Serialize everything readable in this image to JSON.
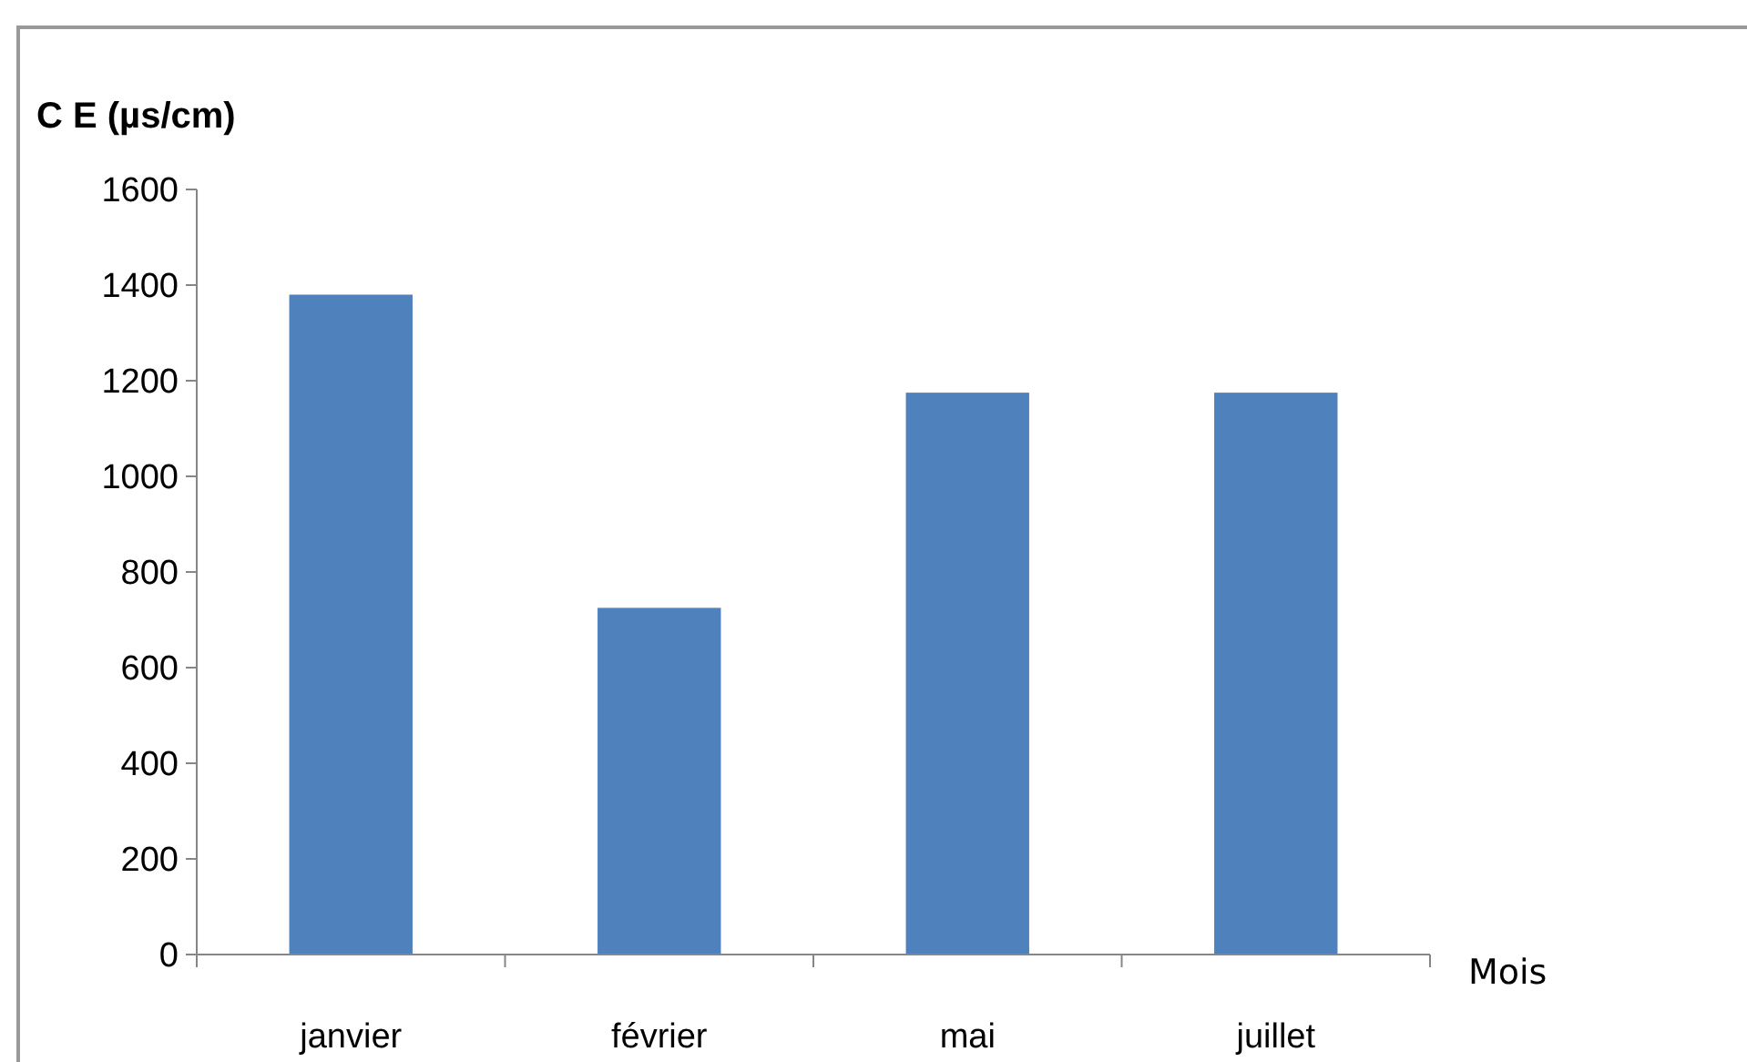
{
  "chart_data": {
    "type": "bar",
    "ylabel": "C E (µs/cm)",
    "xlabel": "Mois",
    "categories": [
      "janvier",
      "février",
      "mai",
      "juillet"
    ],
    "values": [
      1380,
      725,
      1175,
      1175
    ],
    "color": "#4f81bd",
    "ylim": [
      0,
      1600
    ],
    "yticks": [
      0,
      200,
      400,
      600,
      800,
      1000,
      1200,
      1400,
      1600
    ],
    "grid": false
  }
}
